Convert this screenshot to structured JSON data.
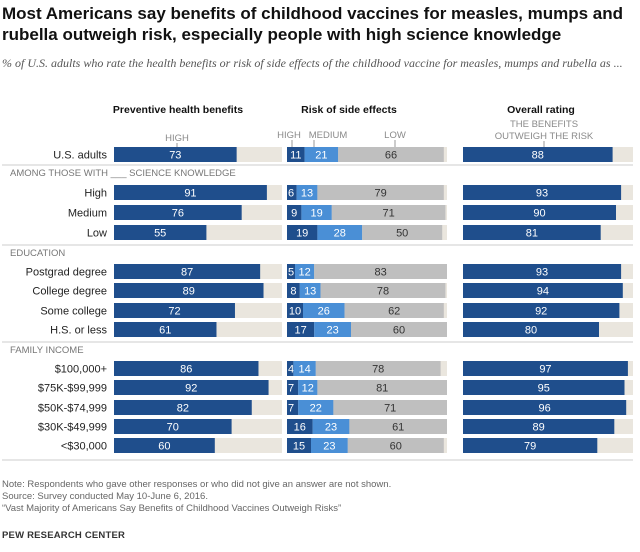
{
  "title": "Most Americans say benefits of childhood vaccines for measles, mumps and rubella outweigh risk, especially people with high science knowledge",
  "subtitle": "% of U.S. adults who rate the health benefits or risk of side effects of the childhood vaccine for measles, mumps and rubella as ...",
  "notes": {
    "note": "Note: Respondents who gave other responses or who did not give an answer are not shown.",
    "source": "Source: Survey conducted May 10-June 6, 2016.",
    "report": "“Vast Majority of Americans Say Benefits of Childhood Vaccines Outweigh Risks”",
    "org": "PEW RESEARCH CENTER"
  },
  "colors": {
    "dark_blue": "#1f4e8c",
    "medium_blue": "#4a8fd6",
    "gray": "#bfbfbf",
    "track": "#eae6de",
    "label_on_dark": "#ffffff",
    "label_on_gray": "#333333"
  },
  "chart_data": {
    "type": "bar",
    "orientation": "horizontal",
    "panels": [
      {
        "title": "Preventive health benefits",
        "series": [
          {
            "name": "HIGH",
            "color": "dark_blue"
          }
        ],
        "scale": [
          0,
          100
        ]
      },
      {
        "title": "Risk of side effects",
        "series": [
          {
            "name": "HIGH",
            "color": "dark_blue"
          },
          {
            "name": "MEDIUM",
            "color": "medium_blue"
          },
          {
            "name": "LOW",
            "color": "gray"
          }
        ],
        "scale": [
          0,
          100
        ]
      },
      {
        "title": "Overall rating",
        "series": [
          {
            "name": "THE BENEFITS OUTWEIGH THE RISK",
            "color": "dark_blue"
          }
        ],
        "scale": [
          0,
          100
        ]
      }
    ],
    "sections": [
      {
        "label": "",
        "rows": [
          {
            "label": "U.S. adults",
            "benefits": 73,
            "risk": [
              11,
              21,
              66
            ],
            "overall": 88
          }
        ]
      },
      {
        "label": "AMONG THOSE WITH ___ SCIENCE KNOWLEDGE",
        "rows": [
          {
            "label": "High",
            "benefits": 91,
            "risk": [
              6,
              13,
              79
            ],
            "overall": 93
          },
          {
            "label": "Medium",
            "benefits": 76,
            "risk": [
              9,
              19,
              71
            ],
            "overall": 90
          },
          {
            "label": "Low",
            "benefits": 55,
            "risk": [
              19,
              28,
              50
            ],
            "overall": 81
          }
        ]
      },
      {
        "label": "EDUCATION",
        "rows": [
          {
            "label": "Postgrad degree",
            "benefits": 87,
            "risk": [
              5,
              12,
              83
            ],
            "overall": 93
          },
          {
            "label": "College degree",
            "benefits": 89,
            "risk": [
              8,
              13,
              78
            ],
            "overall": 94
          },
          {
            "label": "Some college",
            "benefits": 72,
            "risk": [
              10,
              26,
              62
            ],
            "overall": 92
          },
          {
            "label": "H.S. or less",
            "benefits": 61,
            "risk": [
              17,
              23,
              60
            ],
            "overall": 80
          }
        ]
      },
      {
        "label": "FAMILY INCOME",
        "rows": [
          {
            "label": "$100,000+",
            "benefits": 86,
            "risk": [
              4,
              14,
              78
            ],
            "overall": 97
          },
          {
            "label": "$75K-$99,999",
            "benefits": 92,
            "risk": [
              7,
              12,
              81
            ],
            "overall": 95
          },
          {
            "label": "$50K-$74,999",
            "benefits": 82,
            "risk": [
              7,
              22,
              71
            ],
            "overall": 96
          },
          {
            "label": "$30K-$49,999",
            "benefits": 70,
            "risk": [
              16,
              23,
              61
            ],
            "overall": 89
          },
          {
            "label": "<$30,000",
            "benefits": 60,
            "risk": [
              15,
              23,
              60
            ],
            "overall": 79
          }
        ]
      }
    ]
  }
}
